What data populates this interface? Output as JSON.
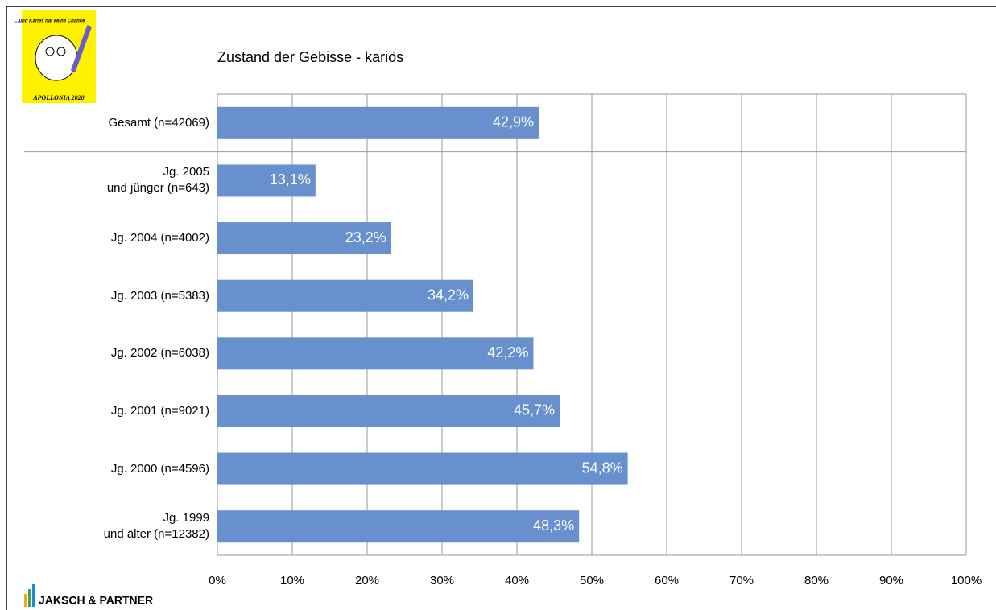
{
  "logo": {
    "tagline": "...und Karies hat keine Chance",
    "name": "APOLLONIA 2020"
  },
  "footer": "JAKSCH & PARTNER",
  "chart_data": {
    "type": "bar",
    "orientation": "horizontal",
    "title": "Zustand der Gebisse - kariös",
    "categories": [
      "Gesamt (n=42069)",
      "Jg. 2005\nund jünger (n=643)",
      "Jg. 2004 (n=4002)",
      "Jg. 2003 (n=5383)",
      "Jg. 2002 (n=6038)",
      "Jg. 2001 (n=9021)",
      "Jg. 2000 (n=4596)",
      "Jg. 1999\nund älter (n=12382)"
    ],
    "values": [
      42.9,
      13.1,
      23.2,
      34.2,
      42.2,
      45.7,
      54.8,
      48.3
    ],
    "value_labels": [
      "42,9%",
      "13,1%",
      "23,2%",
      "34,2%",
      "42,2%",
      "45,7%",
      "54,8%",
      "48,3%"
    ],
    "color": "#6890cc",
    "xlim": [
      0,
      100
    ],
    "xticks": [
      {
        "value": 0,
        "label": "0%"
      },
      {
        "value": 10,
        "label": "10%"
      },
      {
        "value": 20,
        "label": "20%"
      },
      {
        "value": 30,
        "label": "30%"
      },
      {
        "value": 40,
        "label": "40%"
      },
      {
        "value": 50,
        "label": "50%"
      },
      {
        "value": 60,
        "label": "60%"
      },
      {
        "value": 70,
        "label": "70%"
      },
      {
        "value": 80,
        "label": "80%"
      },
      {
        "value": 90,
        "label": "90%"
      },
      {
        "value": 100,
        "label": "100%"
      }
    ],
    "grid": true
  }
}
